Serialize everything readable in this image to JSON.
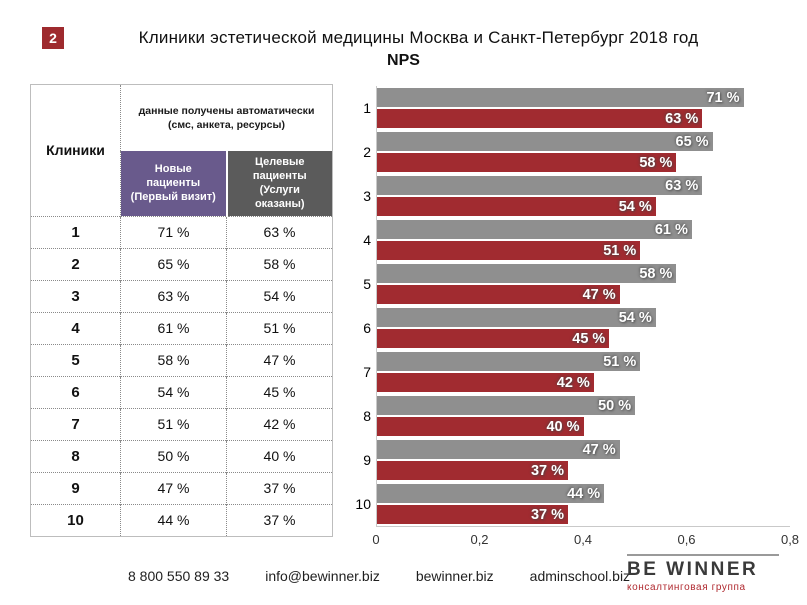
{
  "slide": {
    "number": "2",
    "title": "Клиники эстетической медицины Москва и Санкт-Петербург 2018 год",
    "subtitle": "NPS"
  },
  "table": {
    "col_clinics": "Клиники",
    "header_note": "данные получены автоматически (смс, анкета, ресурсы)",
    "col_new": "Новые пациенты (Первый визит)",
    "col_target": "Целевые пациенты (Услуги оказаны)",
    "rows": [
      {
        "clinic": "1",
        "new": "71 %",
        "target": "63 %"
      },
      {
        "clinic": "2",
        "new": "65 %",
        "target": "58 %"
      },
      {
        "clinic": "3",
        "new": "63 %",
        "target": "54 %"
      },
      {
        "clinic": "4",
        "new": "61 %",
        "target": "51 %"
      },
      {
        "clinic": "5",
        "new": "58 %",
        "target": "47 %"
      },
      {
        "clinic": "6",
        "new": "54 %",
        "target": "45 %"
      },
      {
        "clinic": "7",
        "new": "51 %",
        "target": "42 %"
      },
      {
        "clinic": "8",
        "new": "50 %",
        "target": "40 %"
      },
      {
        "clinic": "9",
        "new": "47 %",
        "target": "37 %"
      },
      {
        "clinic": "10",
        "new": "44 %",
        "target": "37 %"
      }
    ]
  },
  "chart_data": {
    "type": "bar",
    "orientation": "horizontal",
    "title": "NPS",
    "categories": [
      "1",
      "2",
      "3",
      "4",
      "5",
      "6",
      "7",
      "8",
      "9",
      "10"
    ],
    "series": [
      {
        "name": "Новые пациенты (Первый визит)",
        "color": "#8f8f8f",
        "values": [
          71,
          65,
          63,
          61,
          58,
          54,
          51,
          50,
          47,
          44
        ]
      },
      {
        "name": "Целевые пациенты (Услуги оказаны)",
        "color": "#a12b30",
        "values": [
          63,
          58,
          54,
          51,
          47,
          45,
          42,
          40,
          37,
          37
        ]
      }
    ],
    "value_suffix": " %",
    "xlim": [
      0,
      0.8
    ],
    "x_ticks": [
      "0",
      "0,2",
      "0,4",
      "0,6",
      "0,8"
    ],
    "grid": false,
    "legend": "none"
  },
  "colors": {
    "accent_red": "#a12b30",
    "bar_gray": "#8f8f8f",
    "header_purple": "#695a8c",
    "header_gray": "#5b5b5b"
  },
  "footer": {
    "phone": "8 800 550 89 33",
    "email": "info@bewinner.biz",
    "site": "bewinner.biz",
    "school": "adminschool.biz",
    "logo_text": "BE WINNER",
    "logo_sub": "консалтинговая группа"
  }
}
